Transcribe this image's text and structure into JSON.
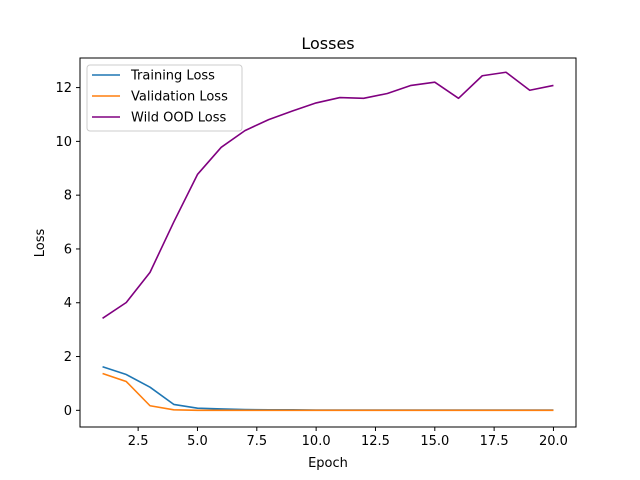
{
  "chart_data": {
    "type": "line",
    "title": "Losses",
    "xlabel": "Epoch",
    "ylabel": "Loss",
    "xlim": [
      0.05,
      20.95
    ],
    "ylim": [
      -0.62,
      13.1
    ],
    "xticks": [
      2.5,
      5.0,
      7.5,
      10.0,
      12.5,
      15.0,
      17.5,
      20.0
    ],
    "xtick_labels": [
      "2.5",
      "5.0",
      "7.5",
      "10.0",
      "12.5",
      "15.0",
      "17.5",
      "20.0"
    ],
    "yticks": [
      0,
      2,
      4,
      6,
      8,
      10,
      12
    ],
    "ytick_labels": [
      "0",
      "2",
      "4",
      "6",
      "8",
      "10",
      "12"
    ],
    "grid": false,
    "legend_position": "top-left",
    "x": [
      1,
      2,
      3,
      4,
      5,
      6,
      7,
      8,
      9,
      10,
      11,
      12,
      13,
      14,
      15,
      16,
      17,
      18,
      19,
      20
    ],
    "series": [
      {
        "name": "Training Loss",
        "color": "#1f77b4",
        "values": [
          1.62,
          1.33,
          0.86,
          0.22,
          0.08,
          0.05,
          0.03,
          0.02,
          0.02,
          0.01,
          0.01,
          0.01,
          0.01,
          0.01,
          0.01,
          0.01,
          0.01,
          0.01,
          0.01,
          0.01
        ]
      },
      {
        "name": "Validation Loss",
        "color": "#ff7f0e",
        "values": [
          1.37,
          1.07,
          0.17,
          0.02,
          0.0,
          0.0,
          0.0,
          0.0,
          0.0,
          0.0,
          0.0,
          0.0,
          0.0,
          0.0,
          0.0,
          0.0,
          0.0,
          0.0,
          0.0,
          0.0
        ]
      },
      {
        "name": "Wild OOD Loss",
        "color": "#800080",
        "values": [
          3.42,
          4.01,
          5.13,
          7.0,
          8.77,
          9.78,
          10.4,
          10.81,
          11.13,
          11.43,
          11.63,
          11.6,
          11.78,
          12.08,
          12.2,
          11.6,
          12.44,
          12.57,
          11.9,
          12.08
        ]
      }
    ]
  }
}
